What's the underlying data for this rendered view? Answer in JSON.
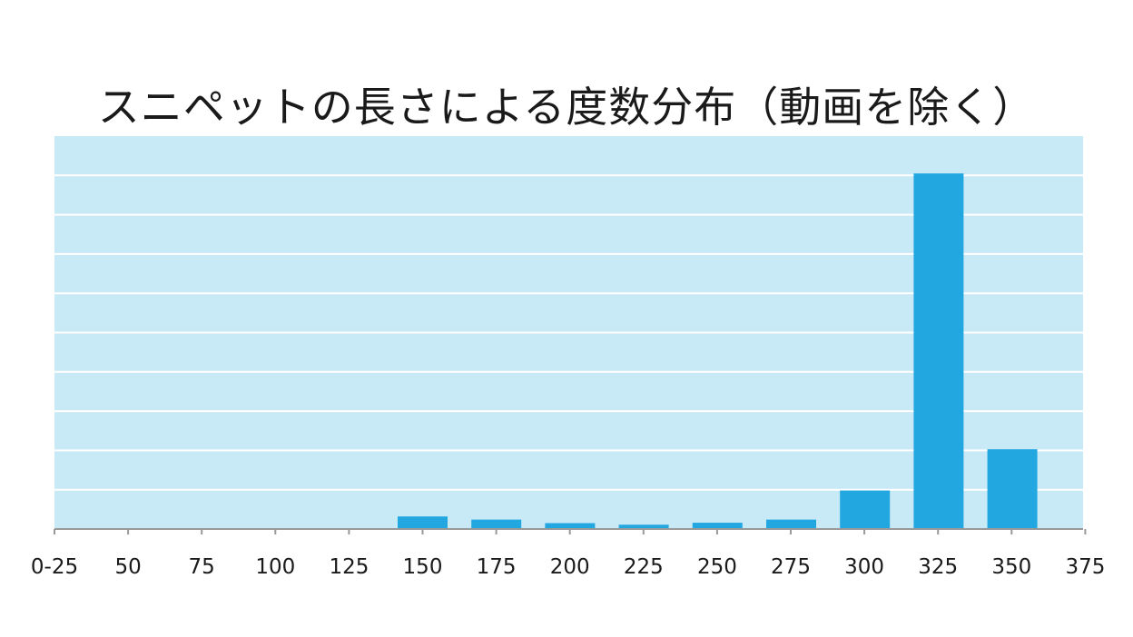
{
  "chart_data": {
    "type": "bar",
    "title": "スニペットの長さによる度数分布（動画を除く）",
    "xlabel": "",
    "ylabel": "",
    "x_tick_labels": [
      "0-25",
      "50",
      "75",
      "100",
      "125",
      "150",
      "175",
      "200",
      "225",
      "250",
      "275",
      "300",
      "325",
      "350",
      "375"
    ],
    "categories": [
      "0-25",
      "50",
      "75",
      "100",
      "125",
      "150",
      "175",
      "200",
      "225",
      "250",
      "275",
      "300",
      "325",
      "350"
    ],
    "values": [
      0,
      0,
      0,
      0,
      0,
      3.2,
      2.4,
      1.5,
      1.1,
      1.6,
      2.4,
      9.8,
      90.5,
      20.3
    ],
    "ylim": [
      0,
      100
    ],
    "y_gridlines": 10,
    "grid": true,
    "legend": "none",
    "colors": {
      "plot_background": "#c8e9f6",
      "bar": "#22a7e1",
      "gridline": "#ffffff",
      "axis": "#999999"
    }
  }
}
